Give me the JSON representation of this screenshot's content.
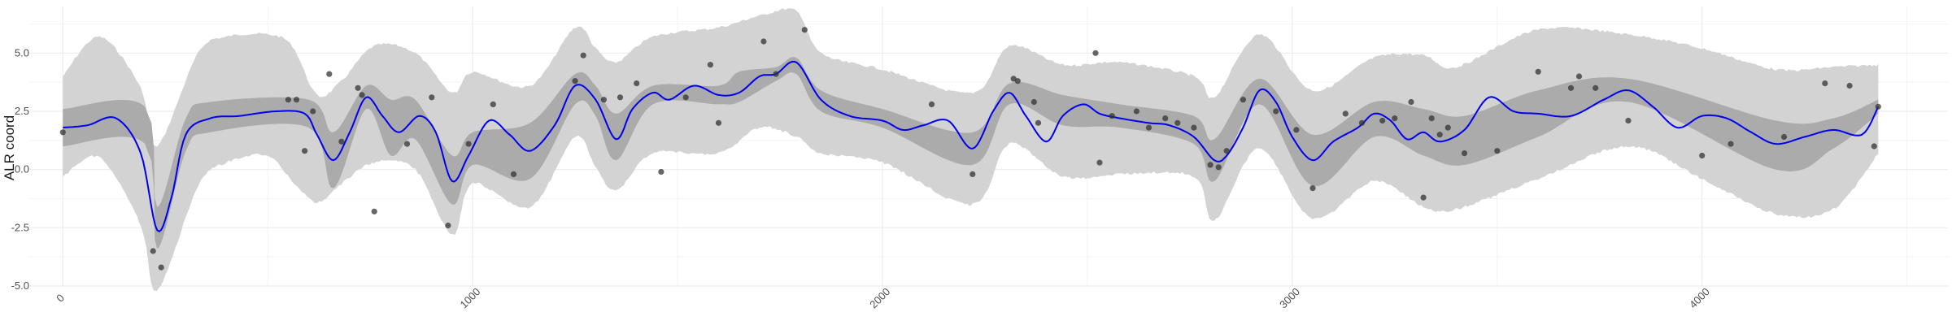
{
  "chart_data": {
    "type": "line",
    "title": "",
    "xlabel": "",
    "ylabel": "ALR coord",
    "xlim": [
      -80,
      4600
    ],
    "ylim": [
      -5.0,
      7.0
    ],
    "x_ticks": [
      0,
      1000,
      2000,
      3000,
      4000
    ],
    "x_tick_labels": [
      "0",
      "1000",
      "2000",
      "3000",
      "4000"
    ],
    "y_ticks": [
      -5.0,
      -2.5,
      0.0,
      2.5,
      5.0
    ],
    "y_tick_labels": [
      "-5.0",
      "-2.5",
      "0.0",
      "2.5",
      "5.0"
    ],
    "grid": true,
    "legend": "none",
    "colors": {
      "mean_line": "#0000ee",
      "outer_band": "#d3d3d3",
      "inner_band": "#ababab",
      "points": "#333333",
      "grid": "#ebebeb"
    },
    "series": [
      {
        "kind": "mean",
        "x": [
          0,
          60,
          130,
          190,
          230,
          265,
          300,
          360,
          430,
          520,
          590,
          620,
          660,
          700,
          740,
          780,
          820,
          870,
          910,
          950,
          990,
          1040,
          1090,
          1140,
          1200,
          1250,
          1300,
          1350,
          1390,
          1440,
          1480,
          1540,
          1600,
          1650,
          1700,
          1740,
          1790,
          1850,
          1920,
          2000,
          2050,
          2100,
          2160,
          2220,
          2270,
          2310,
          2350,
          2400,
          2440,
          2490,
          2530,
          2580,
          2650,
          2700,
          2760,
          2810,
          2840,
          2880,
          2920,
          2960,
          3000,
          3050,
          3100,
          3160,
          3200,
          3240,
          3280,
          3320,
          3360,
          3420,
          3480,
          3540,
          3600,
          3680,
          3760,
          3820,
          3880,
          3940,
          4000,
          4060,
          4120,
          4180,
          4250,
          4320,
          4390,
          4430
        ],
        "y": [
          1.8,
          1.9,
          2.2,
          0.7,
          -2.6,
          -1.2,
          1.5,
          2.2,
          2.3,
          2.5,
          2.4,
          1.5,
          0.4,
          1.6,
          3.1,
          2.3,
          1.6,
          2.3,
          1.6,
          -0.5,
          0.6,
          2.1,
          1.5,
          0.8,
          1.9,
          3.6,
          3.0,
          1.3,
          2.6,
          3.3,
          3.0,
          3.6,
          3.2,
          3.3,
          4.0,
          4.1,
          4.6,
          3.0,
          2.3,
          2.1,
          1.7,
          1.9,
          2.1,
          0.9,
          2.5,
          3.3,
          2.3,
          1.2,
          2.3,
          2.8,
          2.4,
          2.2,
          2.0,
          1.9,
          1.4,
          0.4,
          0.6,
          1.8,
          3.4,
          2.9,
          1.4,
          0.4,
          1.2,
          1.8,
          2.4,
          2.1,
          1.3,
          1.6,
          1.2,
          1.7,
          3.1,
          2.5,
          2.4,
          2.3,
          3.0,
          3.4,
          2.7,
          1.8,
          2.3,
          2.2,
          1.6,
          1.1,
          1.4,
          1.7,
          1.5,
          2.7
        ]
      },
      {
        "kind": "inner_band",
        "x": [
          0,
          200,
          230,
          300,
          360,
          600,
          660,
          740,
          800,
          860,
          950,
          1000,
          1140,
          1250,
          1300,
          1350,
          1440,
          1600,
          1650,
          1740,
          1790,
          1850,
          2000,
          2220,
          2310,
          2440,
          2580,
          2760,
          2810,
          2920,
          3050,
          3200,
          3320,
          3420,
          3600,
          3820,
          4180,
          4320,
          4430
        ],
        "upper": [
          2.6,
          2.7,
          -1.6,
          2.2,
          2.9,
          3.0,
          1.6,
          3.6,
          3.0,
          3.0,
          0.6,
          1.6,
          2.0,
          4.1,
          3.6,
          2.4,
          3.6,
          3.6,
          4.2,
          4.4,
          4.8,
          3.4,
          2.6,
          1.6,
          3.7,
          3.2,
          2.8,
          2.3,
          1.3,
          3.9,
          1.5,
          2.9,
          2.6,
          2.3,
          3.4,
          3.9,
          2.1,
          2.2,
          3.0
        ],
        "lower": [
          1.0,
          1.1,
          -3.4,
          0.8,
          1.6,
          1.8,
          -0.8,
          2.6,
          0.6,
          1.3,
          -1.5,
          0.2,
          -0.4,
          2.8,
          2.3,
          0.4,
          2.8,
          2.8,
          2.9,
          3.8,
          4.1,
          2.5,
          1.8,
          0.2,
          2.8,
          1.9,
          1.8,
          1.1,
          -0.5,
          2.8,
          -0.7,
          1.4,
          0.6,
          0.2,
          1.4,
          2.9,
          0.0,
          0.9,
          2.4
        ]
      },
      {
        "kind": "outer_band",
        "x": [
          0,
          90,
          190,
          230,
          330,
          400,
          500,
          560,
          620,
          680,
          760,
          860,
          950,
          1000,
          1140,
          1250,
          1300,
          1350,
          1440,
          1600,
          1700,
          1790,
          1850,
          2000,
          2220,
          2310,
          2440,
          2580,
          2760,
          2810,
          2920,
          3050,
          3200,
          3320,
          3400,
          3600,
          3820,
          4000,
          4180,
          4320,
          4430
        ],
        "upper": [
          4.0,
          5.7,
          3.5,
          1.0,
          5.0,
          5.7,
          5.8,
          5.3,
          3.2,
          3.8,
          5.3,
          5.0,
          3.3,
          4.2,
          3.6,
          6.1,
          5.2,
          4.6,
          5.7,
          6.1,
          6.6,
          6.8,
          5.0,
          4.3,
          3.3,
          5.3,
          4.5,
          4.6,
          4.0,
          3.1,
          5.8,
          3.4,
          4.8,
          4.9,
          4.4,
          6.0,
          5.8,
          5.2,
          4.3,
          4.4,
          4.5
        ],
        "lower": [
          -0.3,
          0.5,
          -2.4,
          -5.2,
          -0.7,
          0.3,
          0.6,
          -0.5,
          -1.4,
          -0.6,
          0.3,
          0.0,
          -2.8,
          -0.6,
          -1.6,
          1.4,
          0.1,
          -0.9,
          0.7,
          0.7,
          1.8,
          1.4,
          0.7,
          0.3,
          -1.5,
          1.1,
          -0.3,
          -0.2,
          -0.3,
          -2.2,
          0.9,
          -2.1,
          -0.5,
          -1.6,
          -1.7,
          -0.4,
          1.0,
          -0.4,
          -1.9,
          -1.7,
          0.7
        ]
      },
      {
        "kind": "points",
        "x": [
          0,
          220,
          240,
          550,
          570,
          590,
          610,
          650,
          680,
          720,
          730,
          760,
          840,
          900,
          940,
          990,
          1050,
          1100,
          1250,
          1270,
          1320,
          1360,
          1400,
          1460,
          1520,
          1580,
          1600,
          1710,
          1740,
          1810,
          2120,
          2220,
          2320,
          2330,
          2370,
          2380,
          2520,
          2530,
          2560,
          2620,
          2650,
          2690,
          2720,
          2760,
          2800,
          2820,
          2840,
          2880,
          2960,
          3010,
          3050,
          3130,
          3170,
          3220,
          3250,
          3290,
          3320,
          3340,
          3360,
          3380,
          3420,
          3500,
          3600,
          3680,
          3700,
          3740,
          3820,
          4000,
          4070,
          4200,
          4300,
          4360,
          4420,
          4430
        ],
        "y": [
          1.6,
          -3.5,
          -4.2,
          3.0,
          3.0,
          0.8,
          2.5,
          4.1,
          1.2,
          3.5,
          3.2,
          -1.8,
          1.1,
          3.1,
          -2.4,
          1.1,
          2.8,
          -0.2,
          3.8,
          4.9,
          3.0,
          3.1,
          3.7,
          -0.1,
          3.1,
          4.5,
          2.0,
          5.5,
          4.1,
          6.0,
          2.8,
          -0.2,
          3.9,
          3.8,
          2.9,
          2.0,
          5.0,
          0.3,
          2.3,
          2.5,
          1.8,
          2.2,
          2.0,
          1.8,
          0.2,
          0.1,
          0.8,
          3.0,
          2.5,
          1.7,
          -0.8,
          2.4,
          2.0,
          2.1,
          2.2,
          2.9,
          -1.2,
          2.2,
          1.5,
          1.8,
          0.7,
          0.8,
          4.2,
          3.5,
          4.0,
          3.5,
          2.1,
          0.6,
          1.1,
          1.4,
          3.7,
          3.6,
          1.0,
          2.7
        ]
      }
    ]
  }
}
